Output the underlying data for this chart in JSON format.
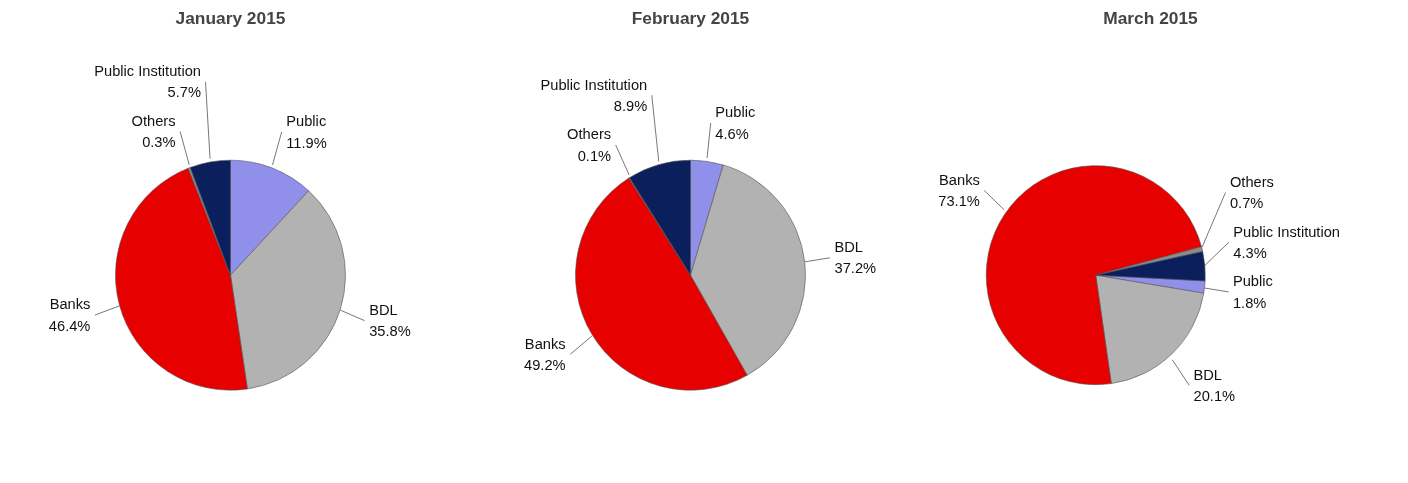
{
  "chart_data": [
    {
      "type": "pie",
      "title": "January 2015",
      "categories": [
        "Public",
        "BDL",
        "Banks",
        "Others",
        "Public Institution"
      ],
      "values": [
        11.9,
        35.8,
        46.4,
        0.3,
        5.7
      ],
      "colors": [
        "#9090ea",
        "#b2b2b2",
        "#e60000",
        "#8c8c8c",
        "#0a1f5c"
      ],
      "value_labels": [
        "11.9%",
        "35.8%",
        "46.4%",
        "0.3%",
        "5.7%"
      ]
    },
    {
      "type": "pie",
      "title": "February 2015",
      "categories": [
        "Public",
        "BDL",
        "Banks",
        "Others",
        "Public Institution"
      ],
      "values": [
        4.6,
        37.2,
        49.2,
        0.1,
        8.9
      ],
      "colors": [
        "#9090ea",
        "#b2b2b2",
        "#e60000",
        "#8c8c8c",
        "#0a1f5c"
      ],
      "value_labels": [
        "4.6%",
        "37.2%",
        "49.2%",
        "0.1%",
        "8.9%"
      ]
    },
    {
      "type": "pie",
      "title": "March 2015",
      "categories": [
        "Public",
        "BDL",
        "Banks",
        "Others",
        "Public Institution"
      ],
      "values": [
        1.8,
        20.1,
        73.1,
        0.7,
        4.3
      ],
      "colors": [
        "#9090ea",
        "#b2b2b2",
        "#e60000",
        "#8c8c8c",
        "#0a1f5c"
      ],
      "value_labels": [
        "1.8%",
        "20.1%",
        "73.1%",
        "0.7%",
        "4.3%"
      ]
    }
  ]
}
